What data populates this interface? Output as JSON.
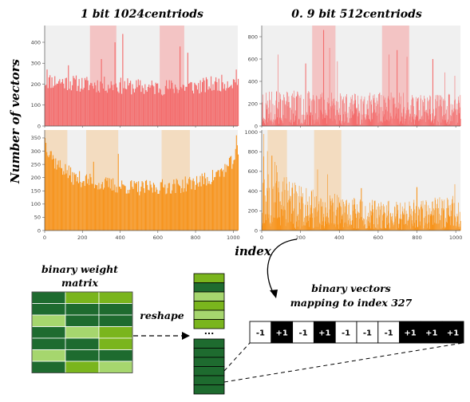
{
  "titles": {
    "left": "1 bit  1024centriods",
    "right": "0. 9 bit  512centriods"
  },
  "ylabel": "Number of vectors",
  "xlabel": "index",
  "diagram": {
    "matrix_label_line1": "binary weight",
    "matrix_label_line2": "matrix",
    "reshape_label": "reshape",
    "ellipsis": "...",
    "mapping_label_line1": "binary vectors",
    "mapping_label_line2": "mapping to index 327",
    "vector_values": [
      "-1",
      "+1",
      "-1",
      "+1",
      "-1",
      "-1",
      "-1",
      "+1",
      "+1",
      "+1"
    ],
    "matrix_rows": [
      [
        "dark",
        "lime",
        "lime"
      ],
      [
        "dark",
        "dark",
        "dark"
      ],
      [
        "light",
        "dark",
        "dark"
      ],
      [
        "dark",
        "light",
        "lime"
      ],
      [
        "dark",
        "dark",
        "lime"
      ],
      [
        "light",
        "dark",
        "dark"
      ],
      [
        "dark",
        "lime",
        "light"
      ]
    ],
    "column_cells": [
      "lime",
      "dark",
      "light",
      "lime",
      "light",
      "lime"
    ],
    "column_cells_lower": [
      "dark",
      "dark",
      "dark",
      "dark",
      "dark",
      "dark"
    ],
    "colors": {
      "dark": "#1e6b2f",
      "lime": "#7ab51d",
      "light": "#a6d66e",
      "black": "#000000"
    }
  },
  "chart_data": [
    {
      "type": "bar",
      "panel": "top-left",
      "xlim": [
        0,
        1024
      ],
      "ylim": [
        0,
        480
      ],
      "yticks": [
        0,
        100,
        200,
        300,
        400
      ],
      "xticks": [
        0,
        200,
        400,
        600,
        800,
        1000
      ],
      "color": "#f36d6d",
      "highlight_color": "#f3c4c4",
      "highlights": [
        [
          240,
          380
        ],
        [
          610,
          740
        ]
      ],
      "n": 200,
      "x_start": 0,
      "x_end": 1024,
      "profile": [
        [
          0,
          215
        ],
        [
          0.05,
          215
        ],
        [
          0.2,
          200
        ],
        [
          0.35,
          195
        ],
        [
          0.5,
          185
        ],
        [
          0.65,
          185
        ],
        [
          0.8,
          190
        ],
        [
          0.95,
          210
        ],
        [
          1,
          210
        ]
      ],
      "spikes": [
        [
          0.01,
          270
        ],
        [
          0.12,
          290
        ],
        [
          0.29,
          320
        ],
        [
          0.36,
          400
        ],
        [
          0.4,
          440
        ],
        [
          0.7,
          380
        ],
        [
          0.74,
          350
        ],
        [
          0.99,
          270
        ]
      ],
      "noise": 40,
      "seed": 11
    },
    {
      "type": "bar",
      "panel": "top-right",
      "xlim": [
        0,
        1024
      ],
      "ylim": [
        0,
        900
      ],
      "yticks": [
        0,
        200,
        400,
        600,
        800
      ],
      "xticks": [
        0,
        200,
        400,
        600,
        800,
        1000
      ],
      "color": "#f36d6d",
      "highlight_color": "#f3c4c4",
      "highlights": [
        [
          260,
          380
        ],
        [
          620,
          760
        ]
      ],
      "n": 512,
      "x_start": 0,
      "x_end": 1024,
      "profile": [
        [
          0,
          180
        ],
        [
          0.5,
          170
        ],
        [
          1,
          160
        ]
      ],
      "spikes": [
        [
          0.08,
          640
        ],
        [
          0.22,
          560
        ],
        [
          0.31,
          860
        ],
        [
          0.34,
          700
        ],
        [
          0.38,
          580
        ],
        [
          0.64,
          640
        ],
        [
          0.68,
          680
        ],
        [
          0.73,
          620
        ],
        [
          0.86,
          600
        ],
        [
          0.92,
          480
        ],
        [
          0.97,
          450
        ]
      ],
      "noise": 120,
      "seed": 23,
      "sparse": true
    },
    {
      "type": "bar",
      "panel": "bottom-left",
      "xlim": [
        0,
        1024
      ],
      "ylim": [
        0,
        380
      ],
      "yticks": [
        0,
        50,
        100,
        150,
        200,
        250,
        300,
        350
      ],
      "xticks": [
        0,
        200,
        400,
        600,
        800,
        1000
      ],
      "color": "#f7941d",
      "highlight_color": "#f3dcc0",
      "highlights": [
        [
          0,
          120
        ],
        [
          220,
          390
        ],
        [
          620,
          770
        ]
      ],
      "n": 220,
      "x_start": 0,
      "x_end": 1024,
      "profile": [
        [
          0,
          330
        ],
        [
          0.05,
          260
        ],
        [
          0.15,
          200
        ],
        [
          0.3,
          175
        ],
        [
          0.5,
          160
        ],
        [
          0.7,
          170
        ],
        [
          0.85,
          195
        ],
        [
          0.95,
          240
        ],
        [
          1,
          300
        ]
      ],
      "spikes": [
        [
          0.0,
          350
        ],
        [
          0.03,
          300
        ],
        [
          0.25,
          260
        ],
        [
          0.38,
          290
        ],
        [
          0.99,
          360
        ]
      ],
      "noise": 30,
      "seed": 37
    },
    {
      "type": "bar",
      "panel": "bottom-right",
      "xlim": [
        0,
        1024
      ],
      "ylim": [
        0,
        1020
      ],
      "yticks": [
        0,
        200,
        400,
        600,
        800,
        1000
      ],
      "xticks": [
        0,
        200,
        400,
        600,
        800,
        1000
      ],
      "color": "#f7941d",
      "highlight_color": "#f3dcc0",
      "highlights": [
        [
          30,
          130
        ],
        [
          270,
          410
        ]
      ],
      "n": 512,
      "x_start": 0,
      "x_end": 1024,
      "profile": [
        [
          0,
          600
        ],
        [
          0.05,
          420
        ],
        [
          0.15,
          280
        ],
        [
          0.3,
          220
        ],
        [
          0.5,
          180
        ],
        [
          0.7,
          170
        ],
        [
          0.9,
          190
        ],
        [
          1,
          220
        ]
      ],
      "spikes": [
        [
          0.01,
          980
        ],
        [
          0.05,
          760
        ],
        [
          0.28,
          620
        ],
        [
          0.33,
          570
        ],
        [
          0.5,
          430
        ],
        [
          0.78,
          440
        ],
        [
          0.97,
          470
        ]
      ],
      "noise": 130,
      "seed": 53,
      "sparse": true
    }
  ]
}
